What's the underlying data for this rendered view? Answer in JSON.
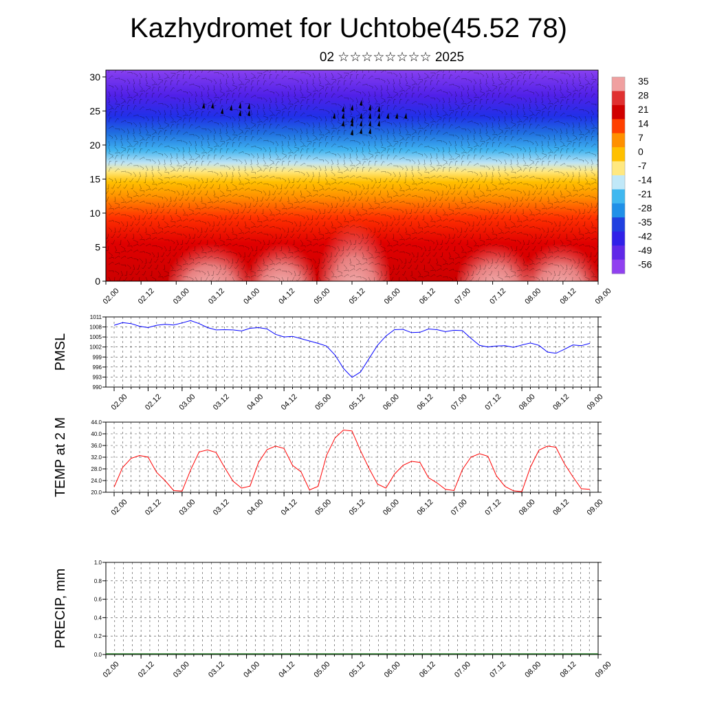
{
  "title": "Kazhydromet for Uchtobe(45.52 78)",
  "subtitle": "02 ☆☆☆☆☆☆☆☆ 2025",
  "colorbar": {
    "labels": [
      "35",
      "28",
      "21",
      "14",
      "7",
      "0",
      "-7",
      "-14",
      "-21",
      "-28",
      "-35",
      "-42",
      "-49",
      "-56"
    ],
    "colors": [
      "#f0a0a0",
      "#e03030",
      "#d00000",
      "#ff4000",
      "#ff9000",
      "#ffc000",
      "#ffe880",
      "#c0e8f8",
      "#40b8f0",
      "#2090e8",
      "#2040e0",
      "#3020e8",
      "#6028e8",
      "#9040f0"
    ]
  },
  "time_labels": [
    "02.00",
    "02.12",
    "03.00",
    "03.12",
    "04.00",
    "04.12",
    "05.00",
    "05.12",
    "06.00",
    "06.12",
    "07.00",
    "07.12",
    "08.00",
    "08.12",
    "09.00"
  ],
  "chart_data": [
    {
      "type": "heatmap",
      "title": "",
      "xlabel": "",
      "ylabel": "",
      "y_ticks": [
        "0",
        "5",
        "10",
        "15",
        "20",
        "25",
        "30"
      ],
      "ylim": [
        0,
        31
      ],
      "x_ticks": [
        "02.00",
        "02.12",
        "03.00",
        "03.12",
        "04.00",
        "04.12",
        "05.00",
        "05.12",
        "06.00",
        "06.12",
        "07.00",
        "07.12",
        "08.00",
        "08.12",
        "09.00"
      ],
      "variable": "temperature with wind barbs",
      "levels": [
        35,
        28,
        21,
        14,
        7,
        0,
        -7,
        -14,
        -21,
        -28,
        -35,
        -42,
        -49,
        -56
      ]
    },
    {
      "type": "line",
      "ylabel": "PMSL",
      "y_ticks": [
        "1011",
        "1008",
        "1005",
        "1002",
        "999",
        "996",
        "993",
        "990"
      ],
      "ylim": [
        990,
        1011
      ],
      "x_ticks": [
        "02.00",
        "02.12",
        "03.00",
        "03.12",
        "04.00",
        "04.12",
        "05.00",
        "05.12",
        "06.00",
        "06.12",
        "07.00",
        "07.12",
        "08.00",
        "08.12",
        "09.00"
      ],
      "color": "#0000ff",
      "x": [
        0,
        3,
        6,
        9,
        12,
        15,
        18,
        21,
        24,
        27,
        30,
        33,
        36,
        39,
        42,
        45,
        48,
        51,
        54,
        57,
        60,
        63,
        66,
        69,
        72,
        75,
        78,
        81,
        84,
        87,
        90,
        93,
        96,
        99,
        102,
        105,
        108,
        111,
        114,
        117,
        120,
        123,
        126,
        129,
        132,
        135,
        138,
        141,
        144,
        147,
        150,
        153,
        156,
        159,
        162,
        165,
        168
      ],
      "values": [
        1008.5,
        1009.3,
        1009,
        1008.2,
        1007.8,
        1008.5,
        1008.8,
        1008.6,
        1009.2,
        1009.9,
        1009,
        1007.8,
        1007.1,
        1007.2,
        1007.1,
        1006.8,
        1007.6,
        1007.8,
        1007.4,
        1005.8,
        1005,
        1005.2,
        1004.5,
        1003.8,
        1003.1,
        1002.3,
        999.6,
        995.6,
        992.9,
        994.5,
        998.5,
        1002.5,
        1005.3,
        1007.2,
        1007.3,
        1006.3,
        1006.4,
        1007.4,
        1007.2,
        1006.6,
        1007,
        1006.9,
        1004.6,
        1002.5,
        1002,
        1002.3,
        1002.4,
        1001.9,
        1002.6,
        1003.2,
        1002.5,
        1000.5,
        1000.1,
        1001.3,
        1002.6,
        1002.4,
        1003.1
      ]
    },
    {
      "type": "line",
      "ylabel": "TEMP at 2 M",
      "y_ticks": [
        "44.0",
        "40.0",
        "36.0",
        "32.0",
        "28.0",
        "24.0",
        "20.0"
      ],
      "ylim": [
        20,
        44
      ],
      "x_ticks": [
        "02.00",
        "02.12",
        "03.00",
        "03.12",
        "04.00",
        "04.12",
        "05.00",
        "05.12",
        "06.00",
        "06.12",
        "07.00",
        "07.12",
        "08.00",
        "08.12",
        "09.00"
      ],
      "color": "#ff0000",
      "x": [
        0,
        3,
        6,
        9,
        12,
        15,
        18,
        21,
        24,
        27,
        30,
        33,
        36,
        39,
        42,
        45,
        48,
        51,
        54,
        57,
        60,
        63,
        66,
        69,
        72,
        75,
        78,
        81,
        84,
        87,
        90,
        93,
        96,
        99,
        102,
        105,
        108,
        111,
        114,
        117,
        120,
        123,
        126,
        129,
        132,
        135,
        138,
        141,
        144,
        147,
        150,
        153,
        156,
        159,
        162,
        165,
        168
      ],
      "values": [
        21.8,
        28.5,
        31.6,
        32.6,
        32,
        26.8,
        24,
        20.6,
        20.4,
        27.6,
        33.8,
        34.5,
        33.6,
        28.5,
        23.8,
        21.4,
        22.1,
        30.2,
        34.6,
        35.8,
        35,
        29.2,
        27,
        20.8,
        22,
        32.6,
        38.6,
        41.3,
        41,
        34.2,
        28.2,
        22.8,
        21.4,
        26.2,
        29.2,
        30.6,
        30.2,
        25,
        23.2,
        21,
        20.6,
        27.8,
        32,
        33.2,
        32.3,
        25.6,
        22,
        20.5,
        20.2,
        28.6,
        34.4,
        35.8,
        35.4,
        29.8,
        25.3,
        21.2,
        21
      ]
    },
    {
      "type": "bar",
      "ylabel": "PRECIP, mm",
      "y_ticks": [
        "1.0",
        "0.8",
        "0.6",
        "0.4",
        "0.2",
        "0.0"
      ],
      "ylim": [
        0,
        1
      ],
      "x_ticks": [
        "02.00",
        "02.12",
        "03.00",
        "03.12",
        "04.00",
        "04.12",
        "05.00",
        "05.12",
        "06.00",
        "06.12",
        "07.00",
        "07.12",
        "08.00",
        "08.12",
        "09.00"
      ],
      "values": []
    }
  ]
}
